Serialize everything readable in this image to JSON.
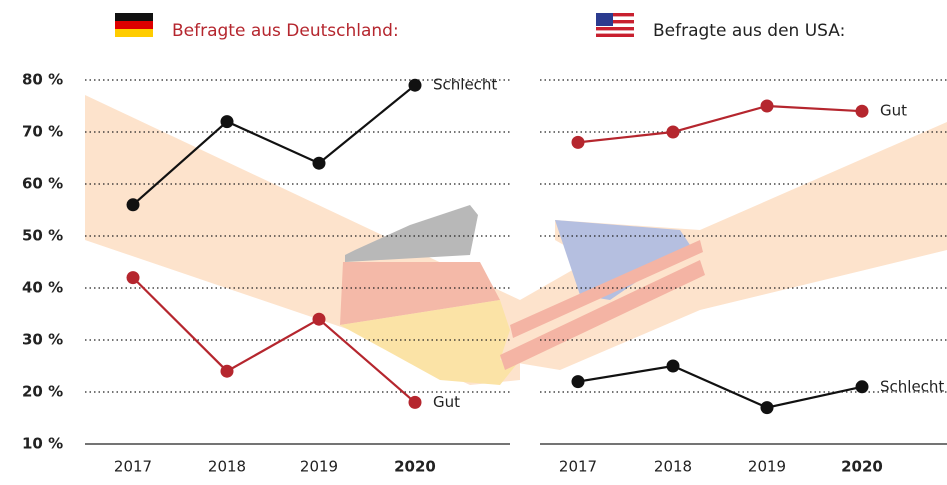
{
  "chart_data": [
    {
      "type": "line",
      "title": "Befragte aus Deutschland:",
      "categories": [
        "2017",
        "2018",
        "2019",
        "2020"
      ],
      "series": [
        {
          "name": "Schlecht",
          "color": "#111111",
          "values": [
            56,
            72,
            64,
            79
          ]
        },
        {
          "name": "Gut",
          "color": "#b5262e",
          "values": [
            42,
            24,
            34,
            18
          ]
        }
      ],
      "ylim": [
        10,
        80
      ],
      "yticks": [
        {
          "value": 10,
          "label": "10 %"
        },
        {
          "value": 20,
          "label": "20 %"
        },
        {
          "value": 30,
          "label": "30 %"
        },
        {
          "value": 40,
          "label": "40 %"
        },
        {
          "value": 50,
          "label": "50 %"
        },
        {
          "value": 60,
          "label": "60 %"
        },
        {
          "value": 70,
          "label": "70 %"
        },
        {
          "value": 80,
          "label": "80 %"
        }
      ],
      "grid": true
    },
    {
      "type": "line",
      "title": "Befragte aus den USA:",
      "categories": [
        "2017",
        "2018",
        "2019",
        "2020"
      ],
      "series": [
        {
          "name": "Gut",
          "color": "#b5262e",
          "values": [
            68,
            70,
            75,
            74
          ]
        },
        {
          "name": "Schlecht",
          "color": "#111111",
          "values": [
            22,
            25,
            17,
            21
          ]
        }
      ],
      "ylim": [
        10,
        80
      ],
      "grid": true
    }
  ]
}
